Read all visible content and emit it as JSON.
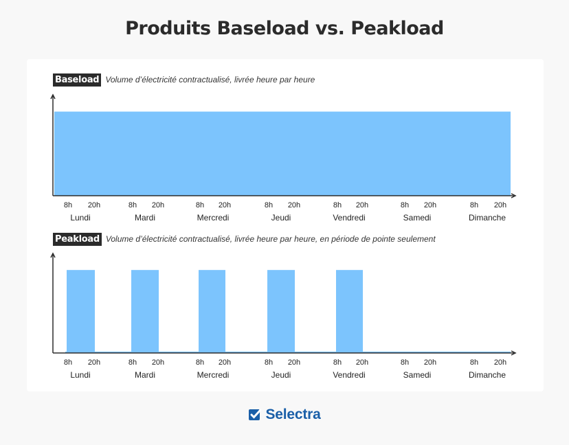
{
  "title": "Produits Baseload vs. Peakload",
  "brand": {
    "name": "Selectra",
    "color": "#1a5fa8",
    "icon": "checkbox-icon"
  },
  "colors": {
    "fill": "#7cc4fd",
    "axis": "#2b2b2b",
    "tag_bg": "#2b2b2b"
  },
  "chart_data": [
    {
      "type": "area",
      "tag": "Baseload",
      "description": "Volume d’électricité contractualisé, livrée heure par heure",
      "days": [
        "Lundi",
        "Mardi",
        "Mercredi",
        "Jeudi",
        "Vendredi",
        "Samedi",
        "Dimanche"
      ],
      "hour_ticks": [
        "8h",
        "20h"
      ],
      "x": [
        0,
        168
      ],
      "values": [
        1,
        1
      ],
      "ylim": [
        0,
        1.2
      ]
    },
    {
      "type": "area",
      "tag": "Peakload",
      "description": "Volume d’électricité contractualisé, livrée heure par heure, en période de pointe seulement",
      "days": [
        "Lundi",
        "Mardi",
        "Mercredi",
        "Jeudi",
        "Vendredi",
        "Samedi",
        "Dimanche"
      ],
      "hour_ticks": [
        "8h",
        "20h"
      ],
      "periods": [
        {
          "day": "Lundi",
          "start": 8,
          "end": 20,
          "value": 1
        },
        {
          "day": "Mardi",
          "start": 8,
          "end": 20,
          "value": 1
        },
        {
          "day": "Mercredi",
          "start": 8,
          "end": 20,
          "value": 1
        },
        {
          "day": "Jeudi",
          "start": 8,
          "end": 20,
          "value": 1
        },
        {
          "day": "Vendredi",
          "start": 8,
          "end": 20,
          "value": 1
        }
      ],
      "off_peak_value": 0,
      "ylim": [
        0,
        1.2
      ]
    }
  ]
}
